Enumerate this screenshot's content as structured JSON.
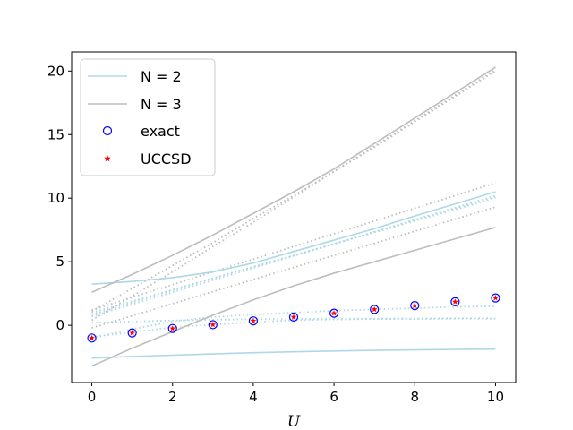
{
  "chart_data": {
    "type": "line",
    "xlabel": "U",
    "ylabel": "",
    "xlim": [
      -0.5,
      10.5
    ],
    "ylim": [
      -4.5,
      21.5
    ],
    "xticks": [
      0,
      2,
      4,
      6,
      8,
      10
    ],
    "yticks": [
      0,
      5,
      10,
      15,
      20
    ],
    "grid": false,
    "legend": {
      "position": "top-left",
      "entries": [
        {
          "label": "N = 2",
          "kind": "line",
          "color": "#add8e6"
        },
        {
          "label": "N = 3",
          "kind": "line",
          "color": "#bdbdbd"
        },
        {
          "label": "exact",
          "kind": "circle",
          "color": "#0000ff"
        },
        {
          "label": "UCCSD",
          "kind": "star",
          "color": "#ff0000"
        }
      ]
    },
    "x": [
      0,
      1,
      2,
      3,
      4,
      5,
      6,
      7,
      8,
      9,
      10
    ],
    "solid_series": [
      {
        "group": "N = 2",
        "color": "#add8e6",
        "values": [
          3.24,
          3.45,
          3.75,
          4.2,
          4.9,
          5.8,
          6.7,
          7.6,
          8.6,
          9.55,
          10.5
        ]
      },
      {
        "group": "N = 2",
        "color": "#add8e6",
        "values": [
          -2.58,
          -2.45,
          -2.35,
          -2.25,
          -2.15,
          -2.08,
          -2.02,
          -1.97,
          -1.93,
          -1.9,
          -1.87
        ]
      },
      {
        "group": "N = 3",
        "color": "#bdbdbd",
        "values": [
          2.6,
          4.0,
          5.5,
          7.1,
          8.8,
          10.5,
          12.3,
          14.3,
          16.3,
          18.3,
          20.3
        ]
      },
      {
        "group": "N = 3",
        "color": "#bdbdbd",
        "values": [
          -3.2,
          -1.8,
          -0.5,
          0.8,
          2.0,
          3.1,
          4.1,
          5.0,
          5.9,
          6.8,
          7.7
        ]
      }
    ],
    "dotted_series": [
      {
        "color": "#add8e6",
        "values": [
          1.0,
          1.9,
          2.8,
          3.7,
          4.6,
          5.5,
          6.4,
          7.3,
          8.2,
          9.1,
          10.0
        ]
      },
      {
        "color": "#add8e6",
        "values": [
          0.85,
          1.8,
          2.75,
          3.7,
          4.6,
          5.5,
          6.4,
          7.35,
          8.3,
          9.2,
          10.1
        ]
      },
      {
        "color": "#add8e6",
        "values": [
          0.7,
          1.65,
          2.6,
          3.55,
          4.5,
          5.45,
          6.4,
          7.35,
          8.3,
          9.25,
          10.2
        ]
      },
      {
        "color": "#add8e6",
        "values": [
          -1.0,
          -0.3,
          0.3,
          0.65,
          0.85,
          1.0,
          1.15,
          1.25,
          1.35,
          1.45,
          1.5
        ]
      },
      {
        "color": "#add8e6",
        "values": [
          0.2,
          0.3,
          0.38,
          0.44,
          0.48,
          0.5,
          0.52,
          0.53,
          0.54,
          0.55,
          0.55
        ]
      },
      {
        "color": "#add8e6",
        "values": [
          -0.9,
          -0.55,
          -0.15,
          0.05,
          0.25,
          0.4,
          0.45,
          0.5,
          0.5,
          0.52,
          0.52
        ]
      },
      {
        "color": "#bdbdbd",
        "values": [
          1.2,
          2.2,
          3.2,
          4.2,
          5.2,
          6.2,
          7.2,
          8.2,
          9.2,
          10.2,
          11.2
        ]
      },
      {
        "color": "#bdbdbd",
        "values": [
          -0.2,
          0.75,
          1.7,
          2.65,
          3.6,
          4.55,
          5.5,
          6.45,
          7.4,
          8.35,
          9.3
        ]
      },
      {
        "color": "#bdbdbd",
        "values": [
          1.1,
          2.9,
          4.7,
          6.5,
          8.4,
          10.2,
          12.1,
          14.0,
          16.0,
          18.0,
          20.0
        ]
      },
      {
        "color": "#bdbdbd",
        "values": [
          0.4,
          2.3,
          4.2,
          6.2,
          8.1,
          10.1,
          12.1,
          14.1,
          16.1,
          18.1,
          20.1
        ]
      }
    ],
    "exact": [
      -1.0,
      -0.6,
      -0.25,
      0.05,
      0.35,
      0.65,
      0.95,
      1.25,
      1.55,
      1.85,
      2.15
    ],
    "uccsd": [
      -1.0,
      -0.6,
      -0.25,
      0.05,
      0.35,
      0.65,
      0.95,
      1.25,
      1.55,
      1.85,
      2.15
    ]
  }
}
